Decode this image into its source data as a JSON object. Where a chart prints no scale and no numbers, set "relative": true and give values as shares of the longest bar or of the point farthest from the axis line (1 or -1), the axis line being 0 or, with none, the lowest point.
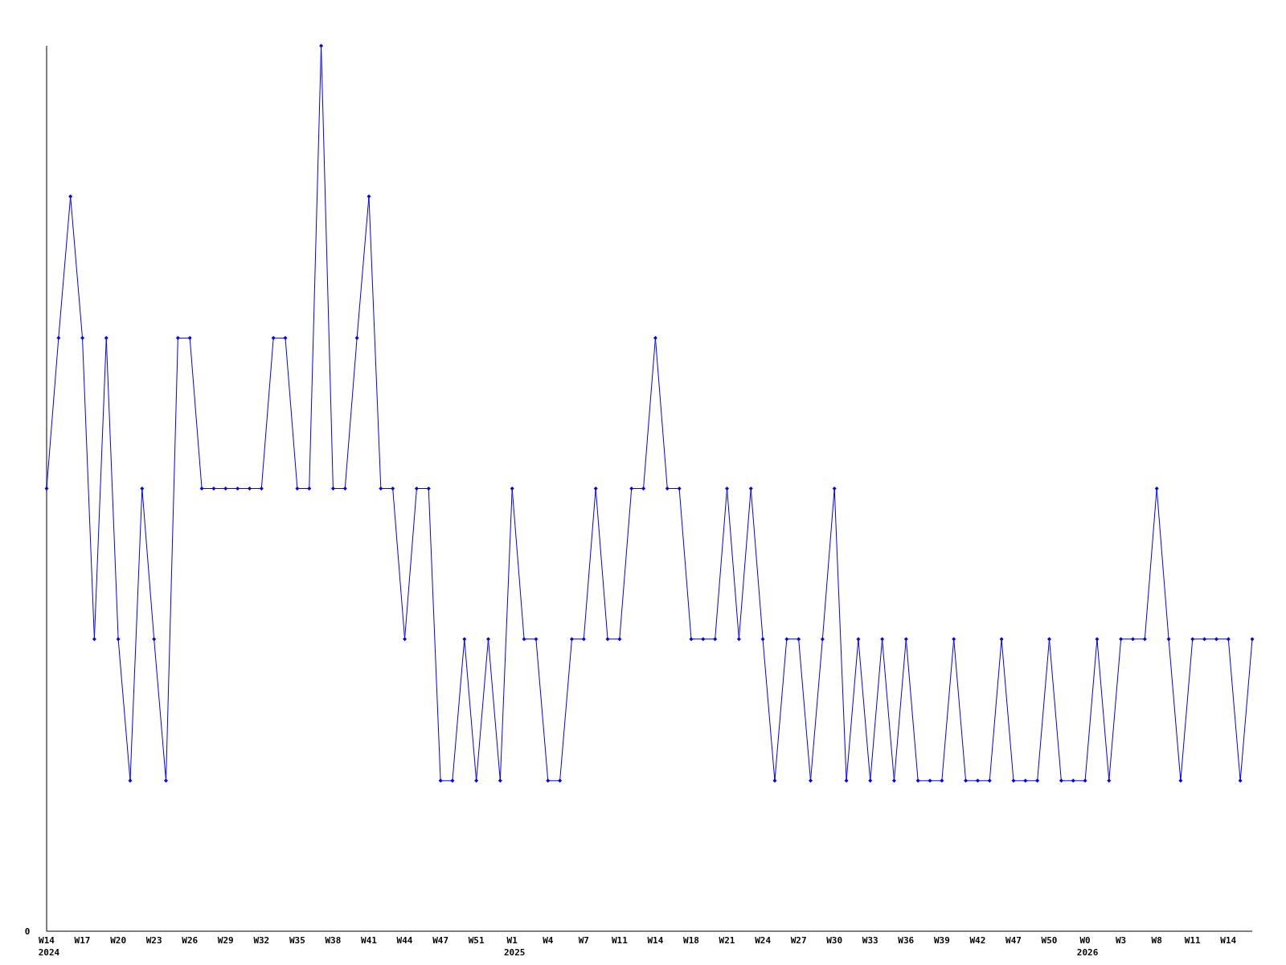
{
  "chart_data": {
    "type": "line",
    "relative": true,
    "marker": "diamond",
    "annotations": [
      "0"
    ],
    "categories": [
      "W14\n2024",
      null,
      null,
      "W17",
      null,
      null,
      "W20",
      null,
      null,
      "W23",
      null,
      null,
      "W26",
      null,
      null,
      "W29",
      null,
      null,
      "W32",
      null,
      null,
      "W35",
      null,
      null,
      "W38",
      null,
      null,
      "W41",
      null,
      null,
      "W44",
      null,
      null,
      "W47",
      null,
      null,
      "W51",
      null,
      null,
      "W1\n2025",
      null,
      null,
      "W4",
      null,
      null,
      "W7",
      null,
      null,
      "W11",
      null,
      null,
      "W14",
      null,
      null,
      "W18",
      null,
      null,
      "W21",
      null,
      null,
      "W24",
      null,
      null,
      "W27",
      null,
      null,
      "W30",
      null,
      null,
      "W33",
      null,
      null,
      "W36",
      null,
      null,
      "W39",
      null,
      null,
      "W42",
      null,
      null,
      "W47",
      null,
      null,
      "W50",
      null,
      null,
      "W0\n2026",
      null,
      null,
      "W3",
      null,
      null,
      "W8",
      null,
      null,
      "W11",
      null,
      null,
      "W14",
      null,
      null
    ],
    "series": [
      {
        "color": "#0000ff",
        "values": [
          0.5,
          0.67,
          0.83,
          0.67,
          0.33,
          0.67,
          0.33,
          0.17,
          0.5,
          0.33,
          0.17,
          0.67,
          0.67,
          0.5,
          0.5,
          0.5,
          0.5,
          0.5,
          0.5,
          0.67,
          0.67,
          0.5,
          0.5,
          1,
          0.5,
          0.5,
          0.67,
          0.83,
          0.5,
          0.5,
          0.33,
          0.5,
          0.5,
          0.17,
          0.17,
          0.33,
          0.17,
          0.33,
          0.17,
          0.5,
          0.33,
          0.33,
          0.17,
          0.17,
          0.33,
          0.33,
          0.5,
          0.33,
          0.33,
          0.5,
          0.5,
          0.67,
          0.5,
          0.5,
          0.33,
          0.33,
          0.33,
          0.5,
          0.33,
          0.5,
          0.33,
          0.17,
          0.33,
          0.33,
          0.17,
          0.33,
          0.5,
          0.17,
          0.33,
          0.17,
          0.33,
          0.17,
          0.33,
          0.17,
          0.17,
          0.17,
          0.33,
          0.17,
          0.17,
          0.17,
          0.33,
          0.17,
          0.17,
          0.17,
          0.33,
          0.17,
          0.17,
          0.17,
          0.33,
          0.17,
          0.33,
          0.33,
          0.33,
          0.5,
          0.33,
          0.17,
          0.33,
          0.33,
          0.33,
          0.33,
          0.17,
          0.33
        ]
      }
    ]
  }
}
